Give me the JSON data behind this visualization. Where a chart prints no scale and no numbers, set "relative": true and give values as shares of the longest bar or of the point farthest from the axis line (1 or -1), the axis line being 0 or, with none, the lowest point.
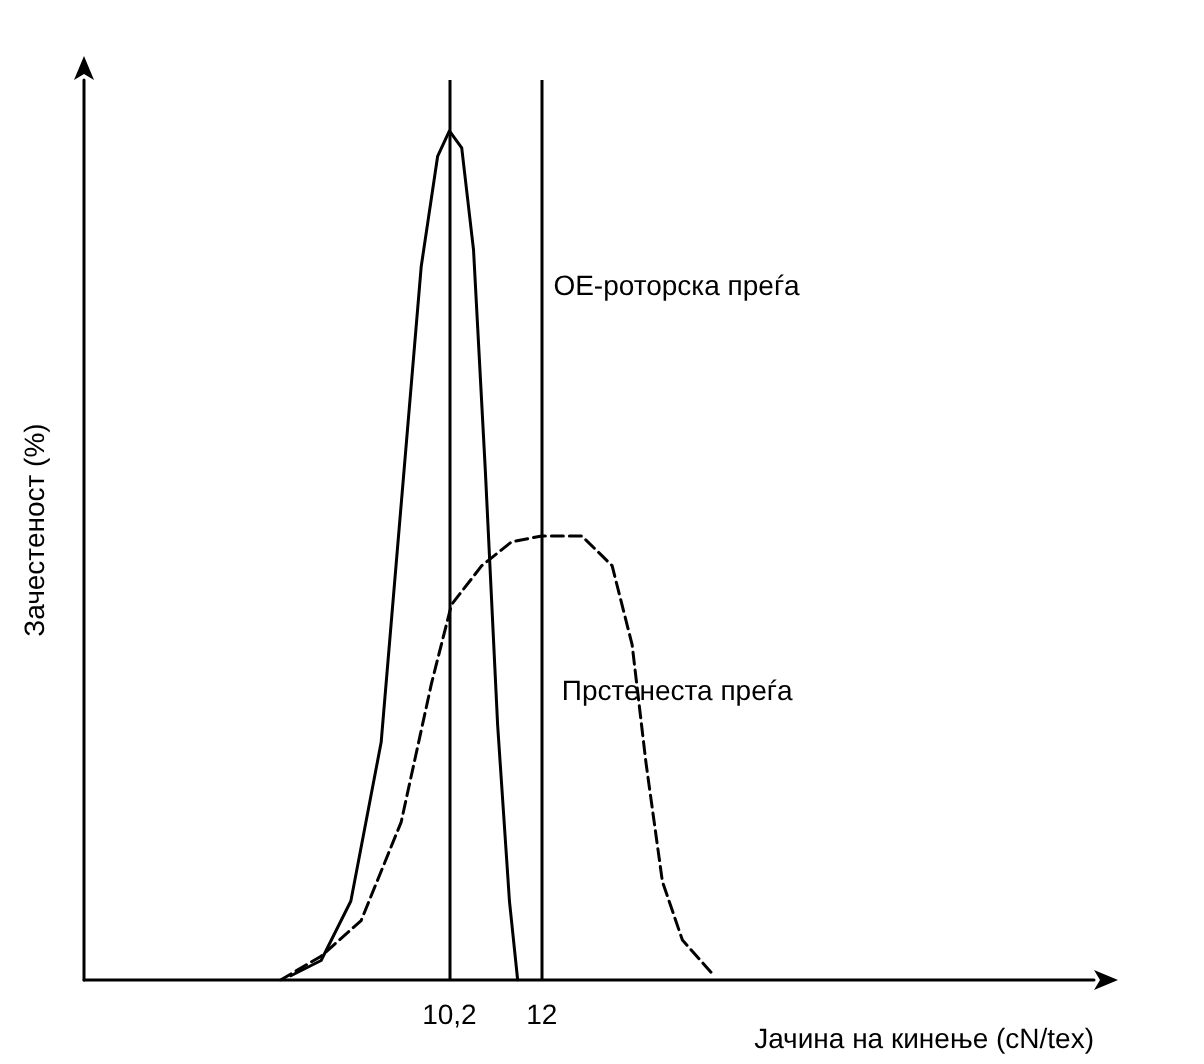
{
  "chart_data": {
    "type": "line",
    "relative": true,
    "xlabel": "Јачина на кинење (cN/tex)",
    "ylabel": "Зачестеност (%)",
    "xlim": [
      3.08,
      22.76
    ],
    "xticks": [
      {
        "value": 10.2,
        "label": "10,2"
      },
      12
    ],
    "tick_labels": "x",
    "grid": false,
    "legend": false,
    "marker": "none",
    "ref_lines": [
      {
        "axis": "x",
        "value": 10.2,
        "color": "#000000"
      },
      {
        "axis": "x",
        "value": 12,
        "color": "#000000"
      }
    ],
    "series": [
      {
        "name": "OE-роторска преѓа",
        "color": "#000000",
        "line_style": "solid",
        "x": [
          7.11,
          7.7,
          8.28,
          8.87,
          9.26,
          9.65,
          9.97,
          10.2,
          10.44,
          10.67,
          10.9,
          11.14,
          11.37,
          11.53
        ],
        "values": [
          0.005,
          0.023,
          0.093,
          0.28,
          0.56,
          0.84,
          0.97,
          1,
          0.98,
          0.86,
          0.6,
          0.3,
          0.093,
          0
        ]
      },
      {
        "name": "Прстенеста преѓа",
        "color": "#000000",
        "line_style": "dashed",
        "x": [
          6.91,
          7.7,
          8.48,
          9.26,
          9.85,
          10.24,
          10.83,
          11.41,
          12,
          12.78,
          13.37,
          13.76,
          14.03,
          14.35,
          14.74,
          15.33
        ],
        "values": [
          0,
          0.028,
          0.07,
          0.186,
          0.349,
          0.442,
          0.488,
          0.516,
          0.523,
          0.523,
          0.488,
          0.395,
          0.256,
          0.116,
          0.047,
          0.007
        ]
      }
    ]
  }
}
